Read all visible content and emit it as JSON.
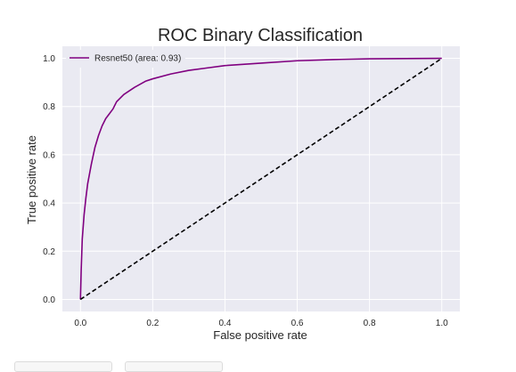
{
  "chart_data": {
    "type": "line",
    "title": "ROC Binary Classification",
    "xlabel": "False positive rate",
    "ylabel": "True positive rate",
    "xlim": [
      -0.05,
      1.05
    ],
    "ylim": [
      -0.05,
      1.05
    ],
    "xticks": [
      "0.0",
      "0.2",
      "0.4",
      "0.6",
      "0.8",
      "1.0"
    ],
    "yticks": [
      "0.0",
      "0.2",
      "0.4",
      "0.6",
      "0.8",
      "1.0"
    ],
    "grid": true,
    "legend_position": "top-left",
    "series": [
      {
        "name": "Resnet50 (area: 0.93)",
        "color": "#800080",
        "style": "solid",
        "x": [
          0.0,
          0.002,
          0.005,
          0.01,
          0.015,
          0.02,
          0.03,
          0.04,
          0.05,
          0.06,
          0.07,
          0.08,
          0.09,
          0.1,
          0.12,
          0.15,
          0.18,
          0.2,
          0.25,
          0.3,
          0.35,
          0.4,
          0.5,
          0.6,
          0.7,
          0.8,
          0.9,
          1.0
        ],
        "y": [
          0.0,
          0.12,
          0.25,
          0.35,
          0.42,
          0.48,
          0.56,
          0.63,
          0.68,
          0.72,
          0.75,
          0.77,
          0.79,
          0.82,
          0.85,
          0.88,
          0.905,
          0.915,
          0.935,
          0.95,
          0.96,
          0.97,
          0.98,
          0.99,
          0.995,
          0.998,
          0.999,
          1.0
        ]
      },
      {
        "name": "",
        "color": "#000000",
        "style": "dashed",
        "x": [
          0.0,
          1.0
        ],
        "y": [
          0.0,
          1.0
        ]
      }
    ]
  }
}
